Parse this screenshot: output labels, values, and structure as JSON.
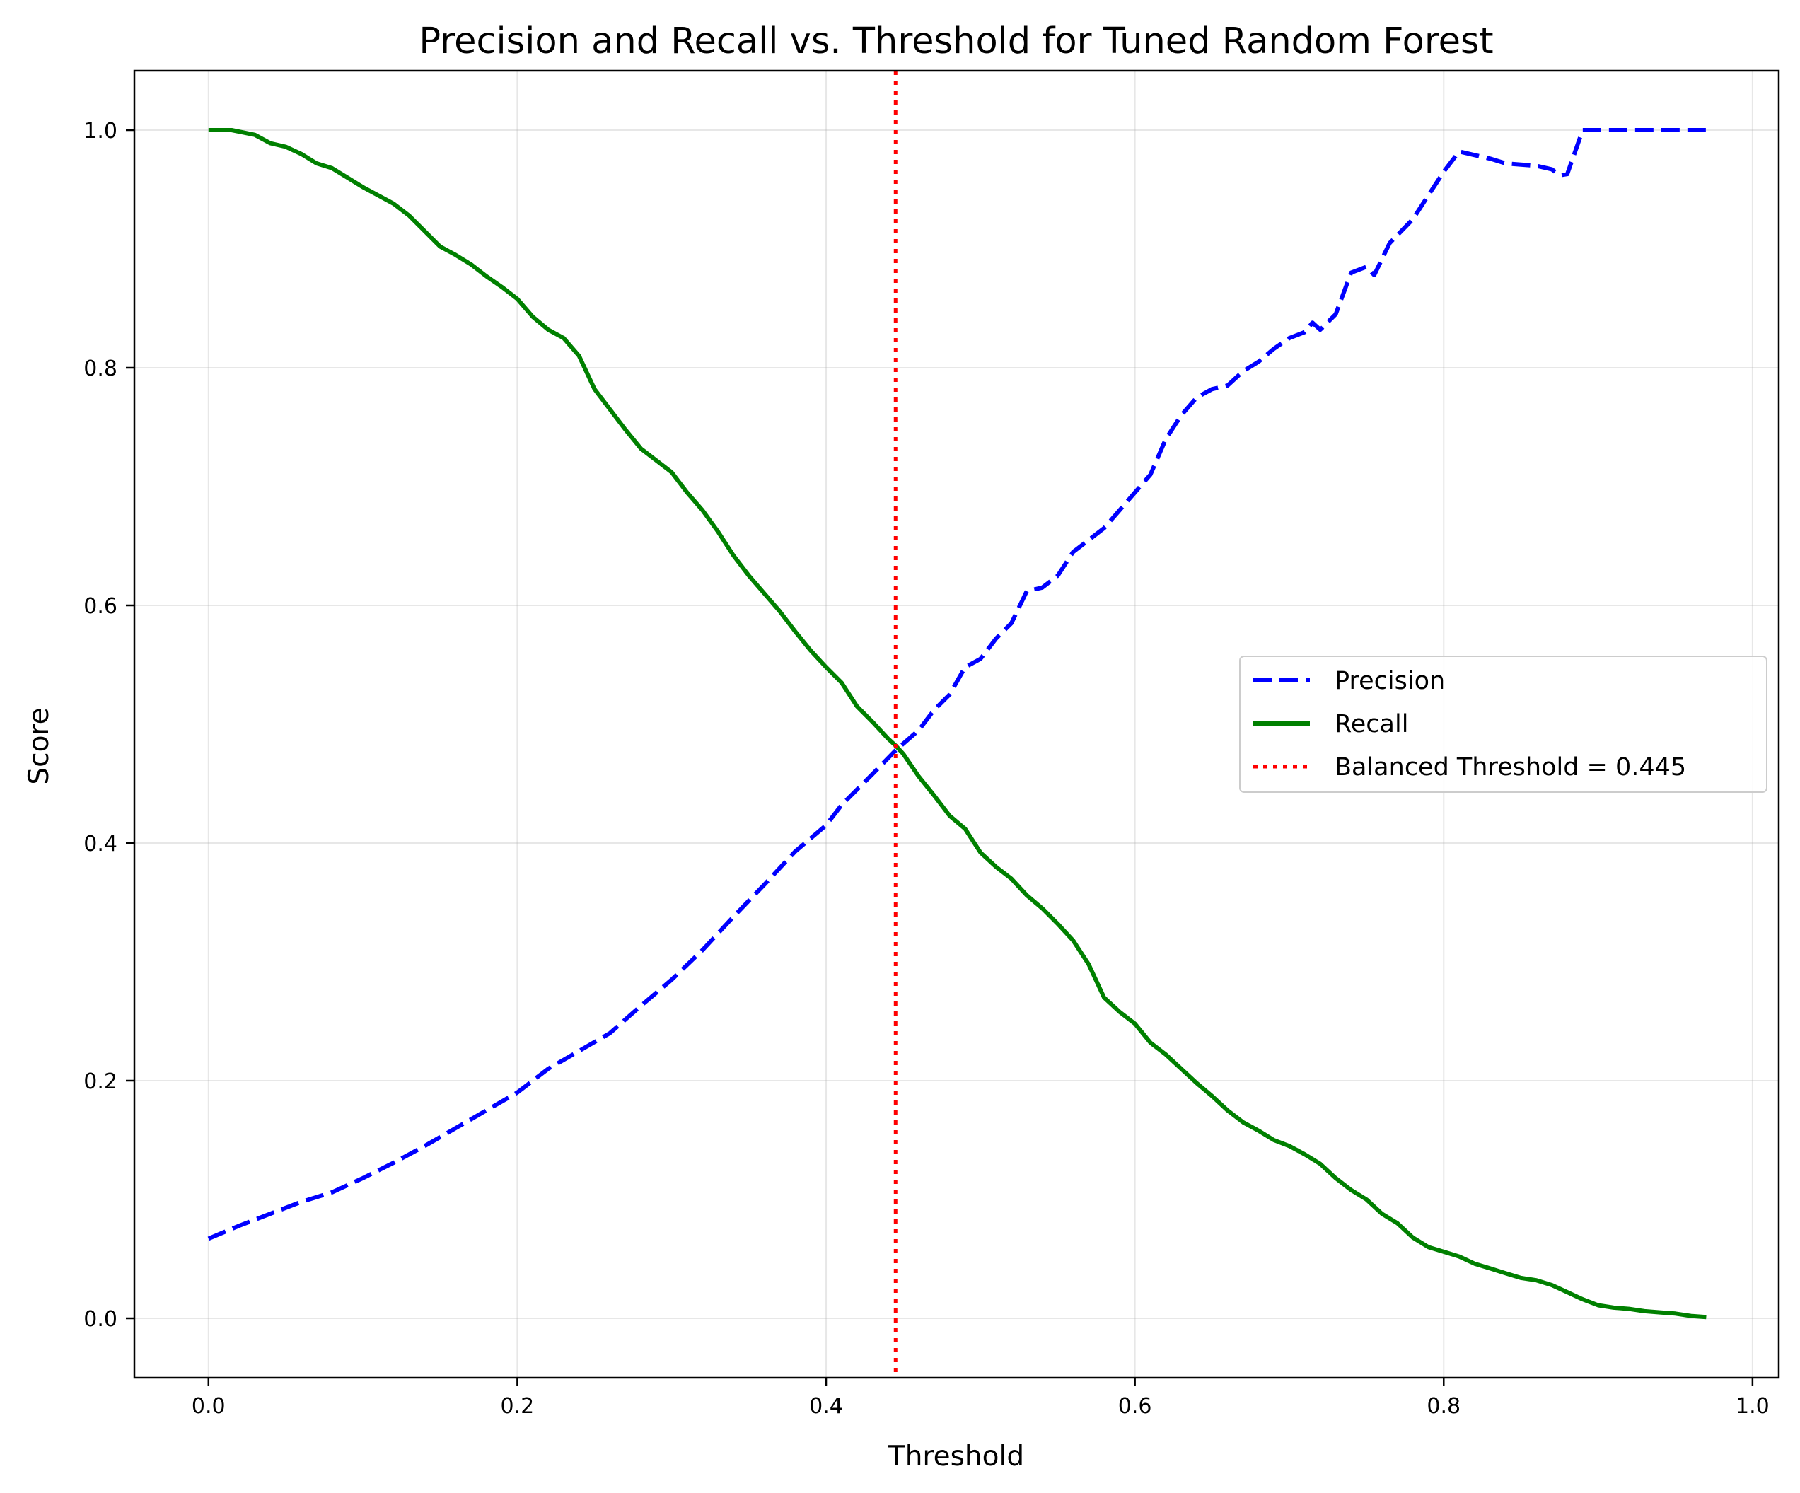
{
  "chart_data": {
    "type": "line",
    "title": "Precision and Recall vs. Threshold for Tuned Random Forest",
    "xlabel": "Threshold",
    "ylabel": "Score",
    "xlim": [
      -0.048,
      1.017
    ],
    "ylim": [
      -0.05,
      1.05
    ],
    "xticks": [
      0.0,
      0.2,
      0.4,
      0.6,
      0.8,
      1.0
    ],
    "xtick_labels": [
      "0.0",
      "0.2",
      "0.4",
      "0.6",
      "0.8",
      "1.0"
    ],
    "yticks": [
      0.0,
      0.2,
      0.4,
      0.6,
      0.8,
      1.0
    ],
    "ytick_labels": [
      "0.0",
      "0.2",
      "0.4",
      "0.6",
      "0.8",
      "1.0"
    ],
    "grid": true,
    "legend_position": "center-right",
    "series": [
      {
        "name": "Precision",
        "color": "#0000ff",
        "style": "dashed",
        "points": [
          [
            0.0,
            0.067
          ],
          [
            0.02,
            0.078
          ],
          [
            0.04,
            0.088
          ],
          [
            0.06,
            0.098
          ],
          [
            0.08,
            0.106
          ],
          [
            0.1,
            0.118
          ],
          [
            0.12,
            0.131
          ],
          [
            0.14,
            0.145
          ],
          [
            0.16,
            0.16
          ],
          [
            0.18,
            0.175
          ],
          [
            0.2,
            0.19
          ],
          [
            0.22,
            0.21
          ],
          [
            0.24,
            0.225
          ],
          [
            0.26,
            0.24
          ],
          [
            0.28,
            0.263
          ],
          [
            0.3,
            0.285
          ],
          [
            0.32,
            0.31
          ],
          [
            0.34,
            0.338
          ],
          [
            0.36,
            0.365
          ],
          [
            0.38,
            0.393
          ],
          [
            0.4,
            0.415
          ],
          [
            0.41,
            0.432
          ],
          [
            0.42,
            0.445
          ],
          [
            0.43,
            0.458
          ],
          [
            0.445,
            0.478
          ],
          [
            0.46,
            0.495
          ],
          [
            0.47,
            0.512
          ],
          [
            0.48,
            0.525
          ],
          [
            0.49,
            0.548
          ],
          [
            0.5,
            0.555
          ],
          [
            0.51,
            0.572
          ],
          [
            0.52,
            0.585
          ],
          [
            0.53,
            0.612
          ],
          [
            0.54,
            0.615
          ],
          [
            0.55,
            0.625
          ],
          [
            0.56,
            0.645
          ],
          [
            0.57,
            0.655
          ],
          [
            0.58,
            0.665
          ],
          [
            0.59,
            0.68
          ],
          [
            0.6,
            0.695
          ],
          [
            0.61,
            0.71
          ],
          [
            0.62,
            0.74
          ],
          [
            0.63,
            0.76
          ],
          [
            0.64,
            0.775
          ],
          [
            0.65,
            0.782
          ],
          [
            0.66,
            0.785
          ],
          [
            0.67,
            0.797
          ],
          [
            0.68,
            0.805
          ],
          [
            0.69,
            0.816
          ],
          [
            0.7,
            0.825
          ],
          [
            0.71,
            0.83
          ],
          [
            0.715,
            0.838
          ],
          [
            0.72,
            0.832
          ],
          [
            0.73,
            0.845
          ],
          [
            0.74,
            0.88
          ],
          [
            0.75,
            0.885
          ],
          [
            0.755,
            0.878
          ],
          [
            0.765,
            0.905
          ],
          [
            0.78,
            0.925
          ],
          [
            0.79,
            0.945
          ],
          [
            0.8,
            0.965
          ],
          [
            0.81,
            0.982
          ],
          [
            0.82,
            0.979
          ],
          [
            0.83,
            0.976
          ],
          [
            0.84,
            0.972
          ],
          [
            0.85,
            0.971
          ],
          [
            0.86,
            0.97
          ],
          [
            0.87,
            0.967
          ],
          [
            0.875,
            0.962
          ],
          [
            0.88,
            0.963
          ],
          [
            0.89,
            1.0
          ],
          [
            0.92,
            1.0
          ],
          [
            0.95,
            1.0
          ],
          [
            0.97,
            1.0
          ]
        ]
      },
      {
        "name": "Recall",
        "color": "#008000",
        "style": "solid",
        "points": [
          [
            0.0,
            1.0
          ],
          [
            0.015,
            1.0
          ],
          [
            0.03,
            0.996
          ],
          [
            0.04,
            0.989
          ],
          [
            0.05,
            0.986
          ],
          [
            0.06,
            0.98
          ],
          [
            0.07,
            0.972
          ],
          [
            0.08,
            0.968
          ],
          [
            0.09,
            0.96
          ],
          [
            0.1,
            0.952
          ],
          [
            0.11,
            0.945
          ],
          [
            0.12,
            0.938
          ],
          [
            0.13,
            0.928
          ],
          [
            0.14,
            0.915
          ],
          [
            0.15,
            0.902
          ],
          [
            0.16,
            0.895
          ],
          [
            0.17,
            0.887
          ],
          [
            0.18,
            0.877
          ],
          [
            0.19,
            0.868
          ],
          [
            0.2,
            0.858
          ],
          [
            0.21,
            0.843
          ],
          [
            0.22,
            0.832
          ],
          [
            0.23,
            0.825
          ],
          [
            0.24,
            0.81
          ],
          [
            0.25,
            0.782
          ],
          [
            0.26,
            0.765
          ],
          [
            0.27,
            0.748
          ],
          [
            0.28,
            0.732
          ],
          [
            0.29,
            0.722
          ],
          [
            0.3,
            0.712
          ],
          [
            0.31,
            0.695
          ],
          [
            0.32,
            0.68
          ],
          [
            0.33,
            0.662
          ],
          [
            0.34,
            0.642
          ],
          [
            0.35,
            0.625
          ],
          [
            0.36,
            0.61
          ],
          [
            0.37,
            0.595
          ],
          [
            0.38,
            0.578
          ],
          [
            0.39,
            0.562
          ],
          [
            0.4,
            0.548
          ],
          [
            0.41,
            0.535
          ],
          [
            0.42,
            0.515
          ],
          [
            0.43,
            0.502
          ],
          [
            0.44,
            0.488
          ],
          [
            0.445,
            0.482
          ],
          [
            0.45,
            0.475
          ],
          [
            0.46,
            0.456
          ],
          [
            0.47,
            0.44
          ],
          [
            0.48,
            0.423
          ],
          [
            0.49,
            0.412
          ],
          [
            0.5,
            0.392
          ],
          [
            0.51,
            0.38
          ],
          [
            0.52,
            0.37
          ],
          [
            0.53,
            0.356
          ],
          [
            0.54,
            0.345
          ],
          [
            0.55,
            0.332
          ],
          [
            0.56,
            0.318
          ],
          [
            0.57,
            0.298
          ],
          [
            0.58,
            0.27
          ],
          [
            0.59,
            0.258
          ],
          [
            0.6,
            0.248
          ],
          [
            0.61,
            0.232
          ],
          [
            0.62,
            0.222
          ],
          [
            0.63,
            0.21
          ],
          [
            0.64,
            0.198
          ],
          [
            0.65,
            0.187
          ],
          [
            0.66,
            0.175
          ],
          [
            0.67,
            0.165
          ],
          [
            0.68,
            0.158
          ],
          [
            0.69,
            0.15
          ],
          [
            0.7,
            0.145
          ],
          [
            0.71,
            0.138
          ],
          [
            0.72,
            0.13
          ],
          [
            0.73,
            0.118
          ],
          [
            0.74,
            0.108
          ],
          [
            0.75,
            0.1
          ],
          [
            0.76,
            0.088
          ],
          [
            0.77,
            0.08
          ],
          [
            0.78,
            0.068
          ],
          [
            0.79,
            0.06
          ],
          [
            0.8,
            0.056
          ],
          [
            0.81,
            0.052
          ],
          [
            0.82,
            0.046
          ],
          [
            0.83,
            0.042
          ],
          [
            0.84,
            0.038
          ],
          [
            0.85,
            0.034
          ],
          [
            0.86,
            0.032
          ],
          [
            0.87,
            0.028
          ],
          [
            0.88,
            0.022
          ],
          [
            0.89,
            0.016
          ],
          [
            0.9,
            0.011
          ],
          [
            0.91,
            0.009
          ],
          [
            0.92,
            0.008
          ],
          [
            0.93,
            0.006
          ],
          [
            0.94,
            0.005
          ],
          [
            0.95,
            0.004
          ],
          [
            0.96,
            0.002
          ],
          [
            0.97,
            0.001
          ]
        ]
      }
    ],
    "vline": {
      "name": "Balanced Threshold = 0.445",
      "x": 0.445,
      "color": "#ff0000",
      "style": "dotted"
    }
  }
}
